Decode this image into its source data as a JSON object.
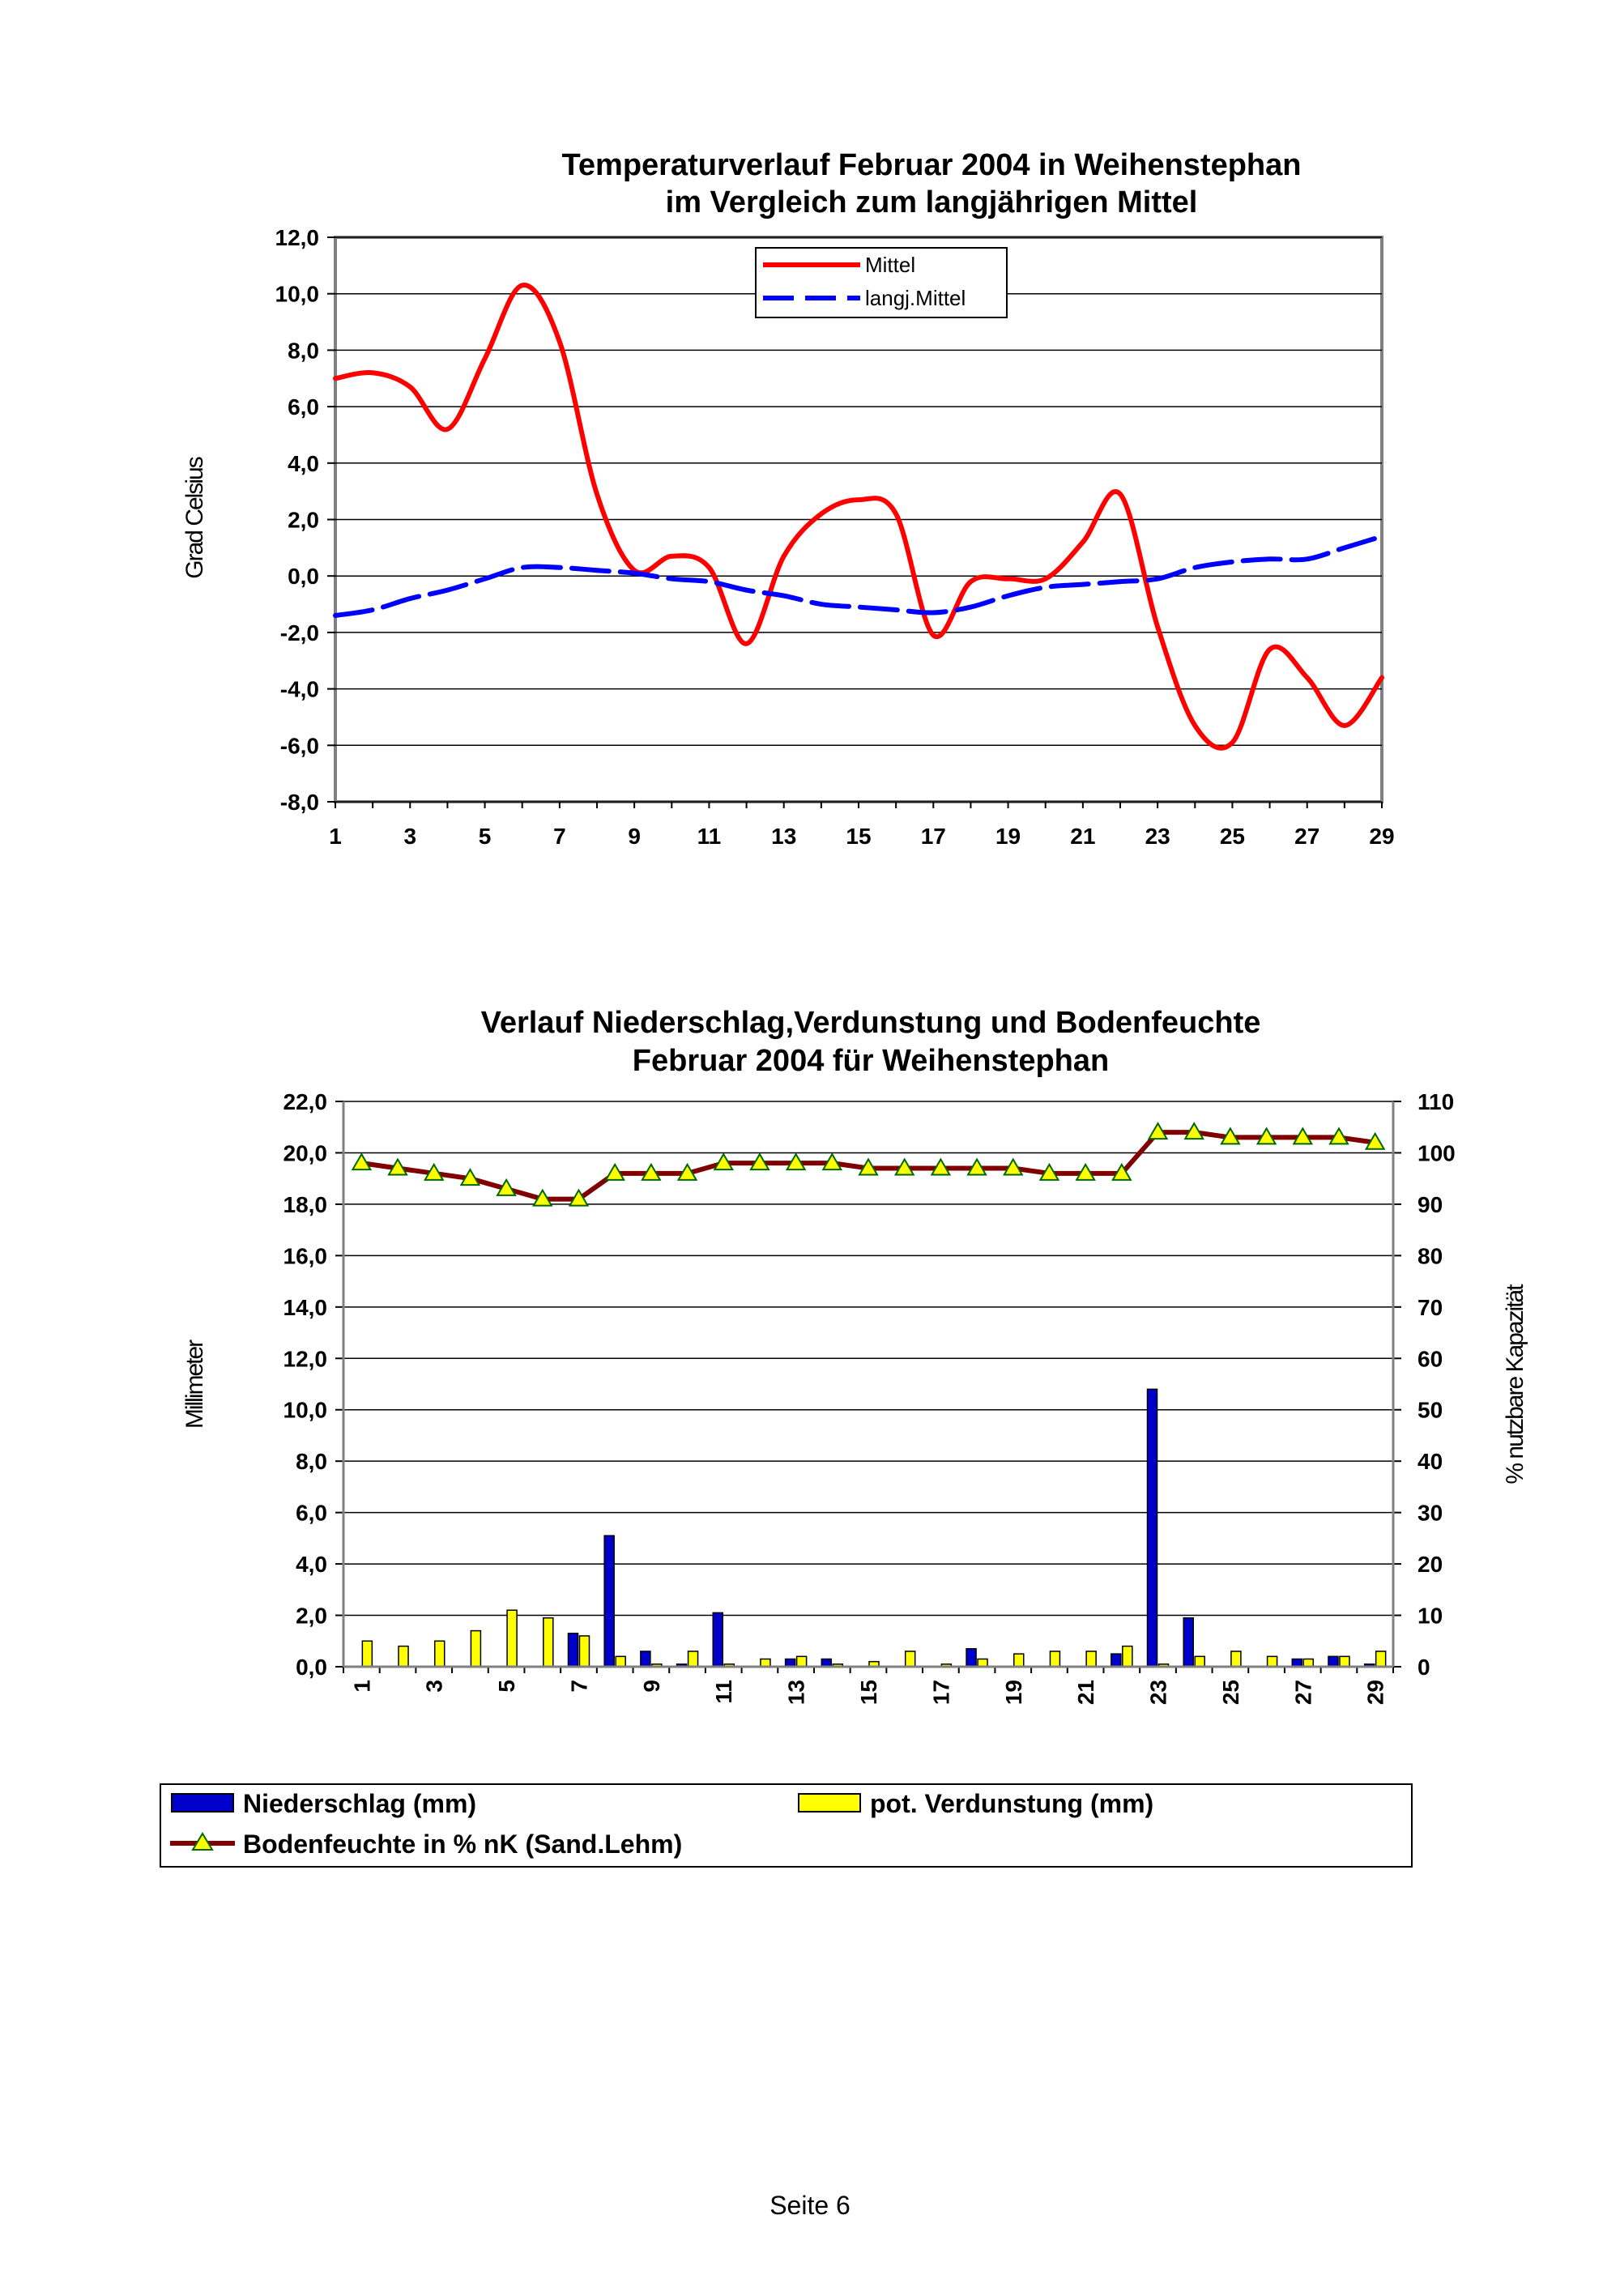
{
  "chart_data": [
    {
      "type": "line",
      "title": "Temperaturverlauf Februar 2004 in Weihenstephan",
      "subtitle": "im Vergleich zum langjährigen Mittel",
      "ylabel": "Grad Celsius",
      "xlabel": "",
      "ylim": [
        -8,
        12
      ],
      "yticks": [
        "12,0",
        "10,0",
        "8,0",
        "6,0",
        "4,0",
        "2,0",
        "0,0",
        "-2,0",
        "-4,0",
        "-6,0",
        "-8,0"
      ],
      "xticks": [
        "1",
        "3",
        "5",
        "7",
        "9",
        "11",
        "13",
        "15",
        "17",
        "19",
        "21",
        "23",
        "25",
        "27",
        "29"
      ],
      "grid": true,
      "legend_position": "top-center",
      "x": [
        1,
        2,
        3,
        4,
        5,
        6,
        7,
        8,
        9,
        10,
        11,
        12,
        13,
        14,
        15,
        16,
        17,
        18,
        19,
        20,
        21,
        22,
        23,
        24,
        25,
        26,
        27,
        28,
        29
      ],
      "series": [
        {
          "name": "Mittel",
          "color": "#ff0000",
          "dash": false,
          "values": [
            7.0,
            7.2,
            6.7,
            5.2,
            7.7,
            10.3,
            8.3,
            2.9,
            0.2,
            0.7,
            0.3,
            -2.4,
            0.7,
            2.2,
            2.7,
            2.2,
            -2.1,
            -0.2,
            -0.1,
            -0.1,
            1.2,
            2.9,
            -1.8,
            -5.3,
            -5.9,
            -2.6,
            -3.6,
            -5.3,
            -3.6
          ]
        },
        {
          "name": "langj.Mittel",
          "color": "#0000ff",
          "dash": true,
          "values": [
            -1.4,
            -1.2,
            -0.8,
            -0.5,
            -0.1,
            0.3,
            0.3,
            0.2,
            0.1,
            -0.1,
            -0.2,
            -0.5,
            -0.7,
            -1.0,
            -1.1,
            -1.2,
            -1.3,
            -1.1,
            -0.7,
            -0.4,
            -0.3,
            -0.2,
            -0.1,
            0.3,
            0.5,
            0.6,
            0.6,
            1.0,
            1.4
          ]
        }
      ]
    },
    {
      "type": "bar",
      "title": "Verlauf Niederschlag,Verdunstung und Bodenfeuchte",
      "subtitle": "Februar 2004 für Weihenstephan",
      "ylabel": "Millimeter",
      "y2label": "% nutzbare Kapazität",
      "ylim": [
        0,
        22
      ],
      "y2lim": [
        0,
        110
      ],
      "yticks": [
        "22,0",
        "20,0",
        "18,0",
        "16,0",
        "14,0",
        "12,0",
        "10,0",
        "8,0",
        "6,0",
        "4,0",
        "2,0",
        "0,0"
      ],
      "y2ticks": [
        "110",
        "100",
        "90",
        "80",
        "70",
        "60",
        "50",
        "40",
        "30",
        "20",
        "10",
        "0"
      ],
      "xticks": [
        "1",
        "3",
        "5",
        "7",
        "9",
        "11",
        "13",
        "15",
        "17",
        "19",
        "21",
        "23",
        "25",
        "27",
        "29"
      ],
      "grid": true,
      "legend_position": "bottom",
      "x": [
        1,
        2,
        3,
        4,
        5,
        6,
        7,
        8,
        9,
        10,
        11,
        12,
        13,
        14,
        15,
        16,
        17,
        18,
        19,
        20,
        21,
        22,
        23,
        24,
        25,
        26,
        27,
        28,
        29
      ],
      "series": [
        {
          "name": "Niederschlag (mm)",
          "kind": "bar",
          "axis": "left",
          "color": "#0000cc",
          "values": [
            0,
            0,
            0,
            0,
            0,
            0,
            1.3,
            5.1,
            0.6,
            0.1,
            2.1,
            0,
            0.3,
            0.3,
            0,
            0,
            0,
            0.7,
            0,
            0,
            0,
            0.5,
            10.8,
            1.9,
            0,
            0,
            0.3,
            0.4,
            0.1
          ]
        },
        {
          "name": "pot. Verdunstung (mm)",
          "kind": "bar",
          "axis": "left",
          "color": "#ffff00",
          "values": [
            1.0,
            0.8,
            1.0,
            1.4,
            2.2,
            1.9,
            1.2,
            0.4,
            0.1,
            0.6,
            0.1,
            0.3,
            0.4,
            0.1,
            0.2,
            0.6,
            0.1,
            0.3,
            0.5,
            0.6,
            0.6,
            0.8,
            0.1,
            0.4,
            0.6,
            0.4,
            0.3,
            0.4,
            0.6
          ]
        },
        {
          "name": "Bodenfeuchte in % nK (Sand.Lehm)",
          "kind": "line",
          "axis": "right",
          "color": "#800000",
          "marker_color": "#ffff00",
          "values": [
            98,
            97,
            96,
            95,
            93,
            91,
            91,
            96,
            96,
            96,
            98,
            98,
            98,
            98,
            97,
            97,
            97,
            97,
            97,
            96,
            96,
            96,
            104,
            104,
            103,
            103,
            103,
            103,
            102
          ]
        }
      ]
    }
  ],
  "footer": "Seite 6"
}
